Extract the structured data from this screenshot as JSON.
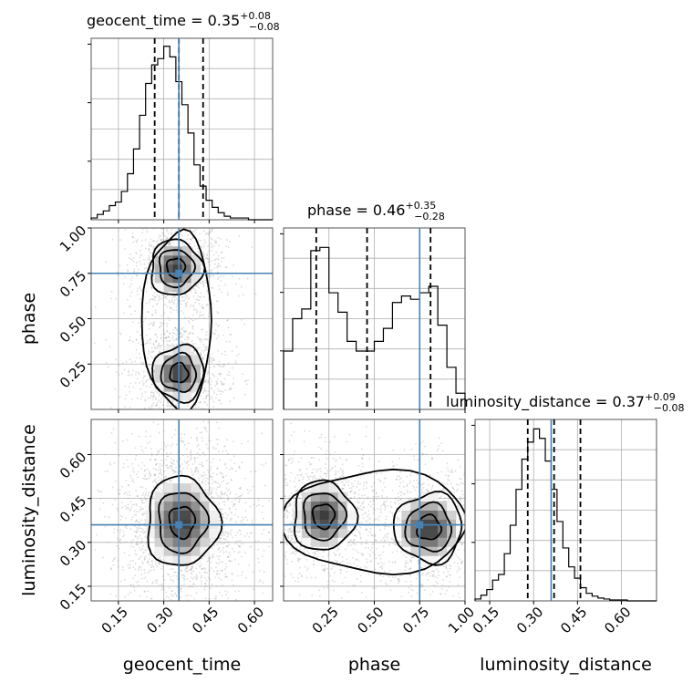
{
  "chart_data": {
    "type": "corner",
    "parameters": [
      "geocent_time",
      "phase",
      "luminosity_distance"
    ],
    "truths": {
      "geocent_time": 0.35,
      "phase": 0.75,
      "luminosity_distance": 0.36
    },
    "marginals": [
      {
        "parameter": "geocent_time",
        "title": {
          "name": "geocent_time",
          "median": "0.35",
          "upper": "+0.08",
          "lower": "−0.08"
        },
        "quantiles": [
          0.27,
          0.35,
          0.43
        ],
        "bins": [
          0.06,
          0.08,
          0.1,
          0.12,
          0.14,
          0.16,
          0.18,
          0.2,
          0.22,
          0.24,
          0.26,
          0.28,
          0.3,
          0.32,
          0.34,
          0.36,
          0.38,
          0.4,
          0.42,
          0.44,
          0.46,
          0.48,
          0.5,
          0.52,
          0.54,
          0.56,
          0.58,
          0.6,
          0.62,
          0.64,
          0.66
        ],
        "counts": [
          2,
          6,
          10,
          16,
          20,
          32,
          52,
          80,
          118,
          154,
          175,
          182,
          196,
          184,
          156,
          130,
          98,
          62,
          38,
          22,
          14,
          8,
          4,
          2,
          2,
          2,
          0,
          0,
          0,
          0
        ],
        "ylim": [
          0,
          205
        ]
      },
      {
        "parameter": "phase",
        "title": {
          "name": "phase",
          "median": "0.46",
          "upper": "+0.35",
          "lower": "−0.28"
        },
        "quantiles": [
          0.18,
          0.46,
          0.81
        ],
        "bins": [
          0.0,
          0.05,
          0.1,
          0.15,
          0.2,
          0.25,
          0.3,
          0.35,
          0.4,
          0.45,
          0.5,
          0.55,
          0.6,
          0.65,
          0.7,
          0.75,
          0.8,
          0.85,
          0.9,
          0.95,
          1.0
        ],
        "counts": [
          36,
          56,
          62,
          98,
          100,
          72,
          60,
          42,
          36,
          36,
          42,
          50,
          66,
          70,
          68,
          72,
          76,
          52,
          26,
          10
        ],
        "ylim": [
          0,
          112
        ]
      },
      {
        "parameter": "luminosity_distance",
        "title": {
          "name": "luminosity_distance",
          "median": "0.37",
          "upper": "+0.09",
          "lower": "−0.08"
        },
        "quantiles": [
          0.28,
          0.37,
          0.46
        ],
        "bins": [
          0.1,
          0.12,
          0.14,
          0.16,
          0.18,
          0.2,
          0.22,
          0.24,
          0.26,
          0.28,
          0.3,
          0.32,
          0.34,
          0.36,
          0.38,
          0.4,
          0.42,
          0.44,
          0.46,
          0.48,
          0.5,
          0.52,
          0.54,
          0.56,
          0.58,
          0.6,
          0.62,
          0.64,
          0.66,
          0.68,
          0.7,
          0.72
        ],
        "counts": [
          2,
          6,
          12,
          22,
          28,
          50,
          80,
          118,
          150,
          168,
          182,
          172,
          148,
          118,
          84,
          56,
          36,
          24,
          14,
          8,
          5,
          3,
          2,
          1,
          1,
          1,
          0,
          0,
          0,
          0,
          0
        ],
        "ylim": [
          0,
          192
        ]
      }
    ],
    "joint": [
      {
        "x": "geocent_time",
        "y": "phase",
        "modes": [
          {
            "x": 0.34,
            "y": 0.78
          },
          {
            "x": 0.35,
            "y": 0.2
          }
        ]
      },
      {
        "x": "geocent_time",
        "y": "luminosity_distance",
        "modes": [
          {
            "x": 0.36,
            "y": 0.37
          }
        ]
      },
      {
        "x": "phase",
        "y": "luminosity_distance",
        "modes": [
          {
            "x": 0.22,
            "y": 0.39
          },
          {
            "x": 0.8,
            "y": 0.35
          }
        ]
      }
    ],
    "axes": {
      "geocent_time": {
        "range": [
          0.06,
          0.66
        ],
        "ticks": [
          "0.15",
          "0.30",
          "0.45",
          "0.60"
        ],
        "tick_values": [
          0.15,
          0.3,
          0.45,
          0.6
        ]
      },
      "phase": {
        "range": [
          0.0,
          1.0
        ],
        "ticks": [
          "0.25",
          "0.50",
          "0.75",
          "1.00"
        ],
        "tick_values": [
          0.25,
          0.5,
          0.75,
          1.0
        ]
      },
      "luminosity_distance": {
        "range": [
          0.1,
          0.72
        ],
        "ticks": [
          "0.15",
          "0.30",
          "0.45",
          "0.60"
        ],
        "tick_values": [
          0.15,
          0.3,
          0.45,
          0.6
        ]
      }
    },
    "xlabels": [
      "geocent_time",
      "phase",
      "luminosity_distance"
    ],
    "ylabels": [
      "",
      "phase",
      "luminosity_distance"
    ],
    "grid": true,
    "colors": {
      "truth": "#4682b4",
      "contour": "#000000",
      "hist": "#000000",
      "scatter": "#9a9a9a"
    }
  }
}
